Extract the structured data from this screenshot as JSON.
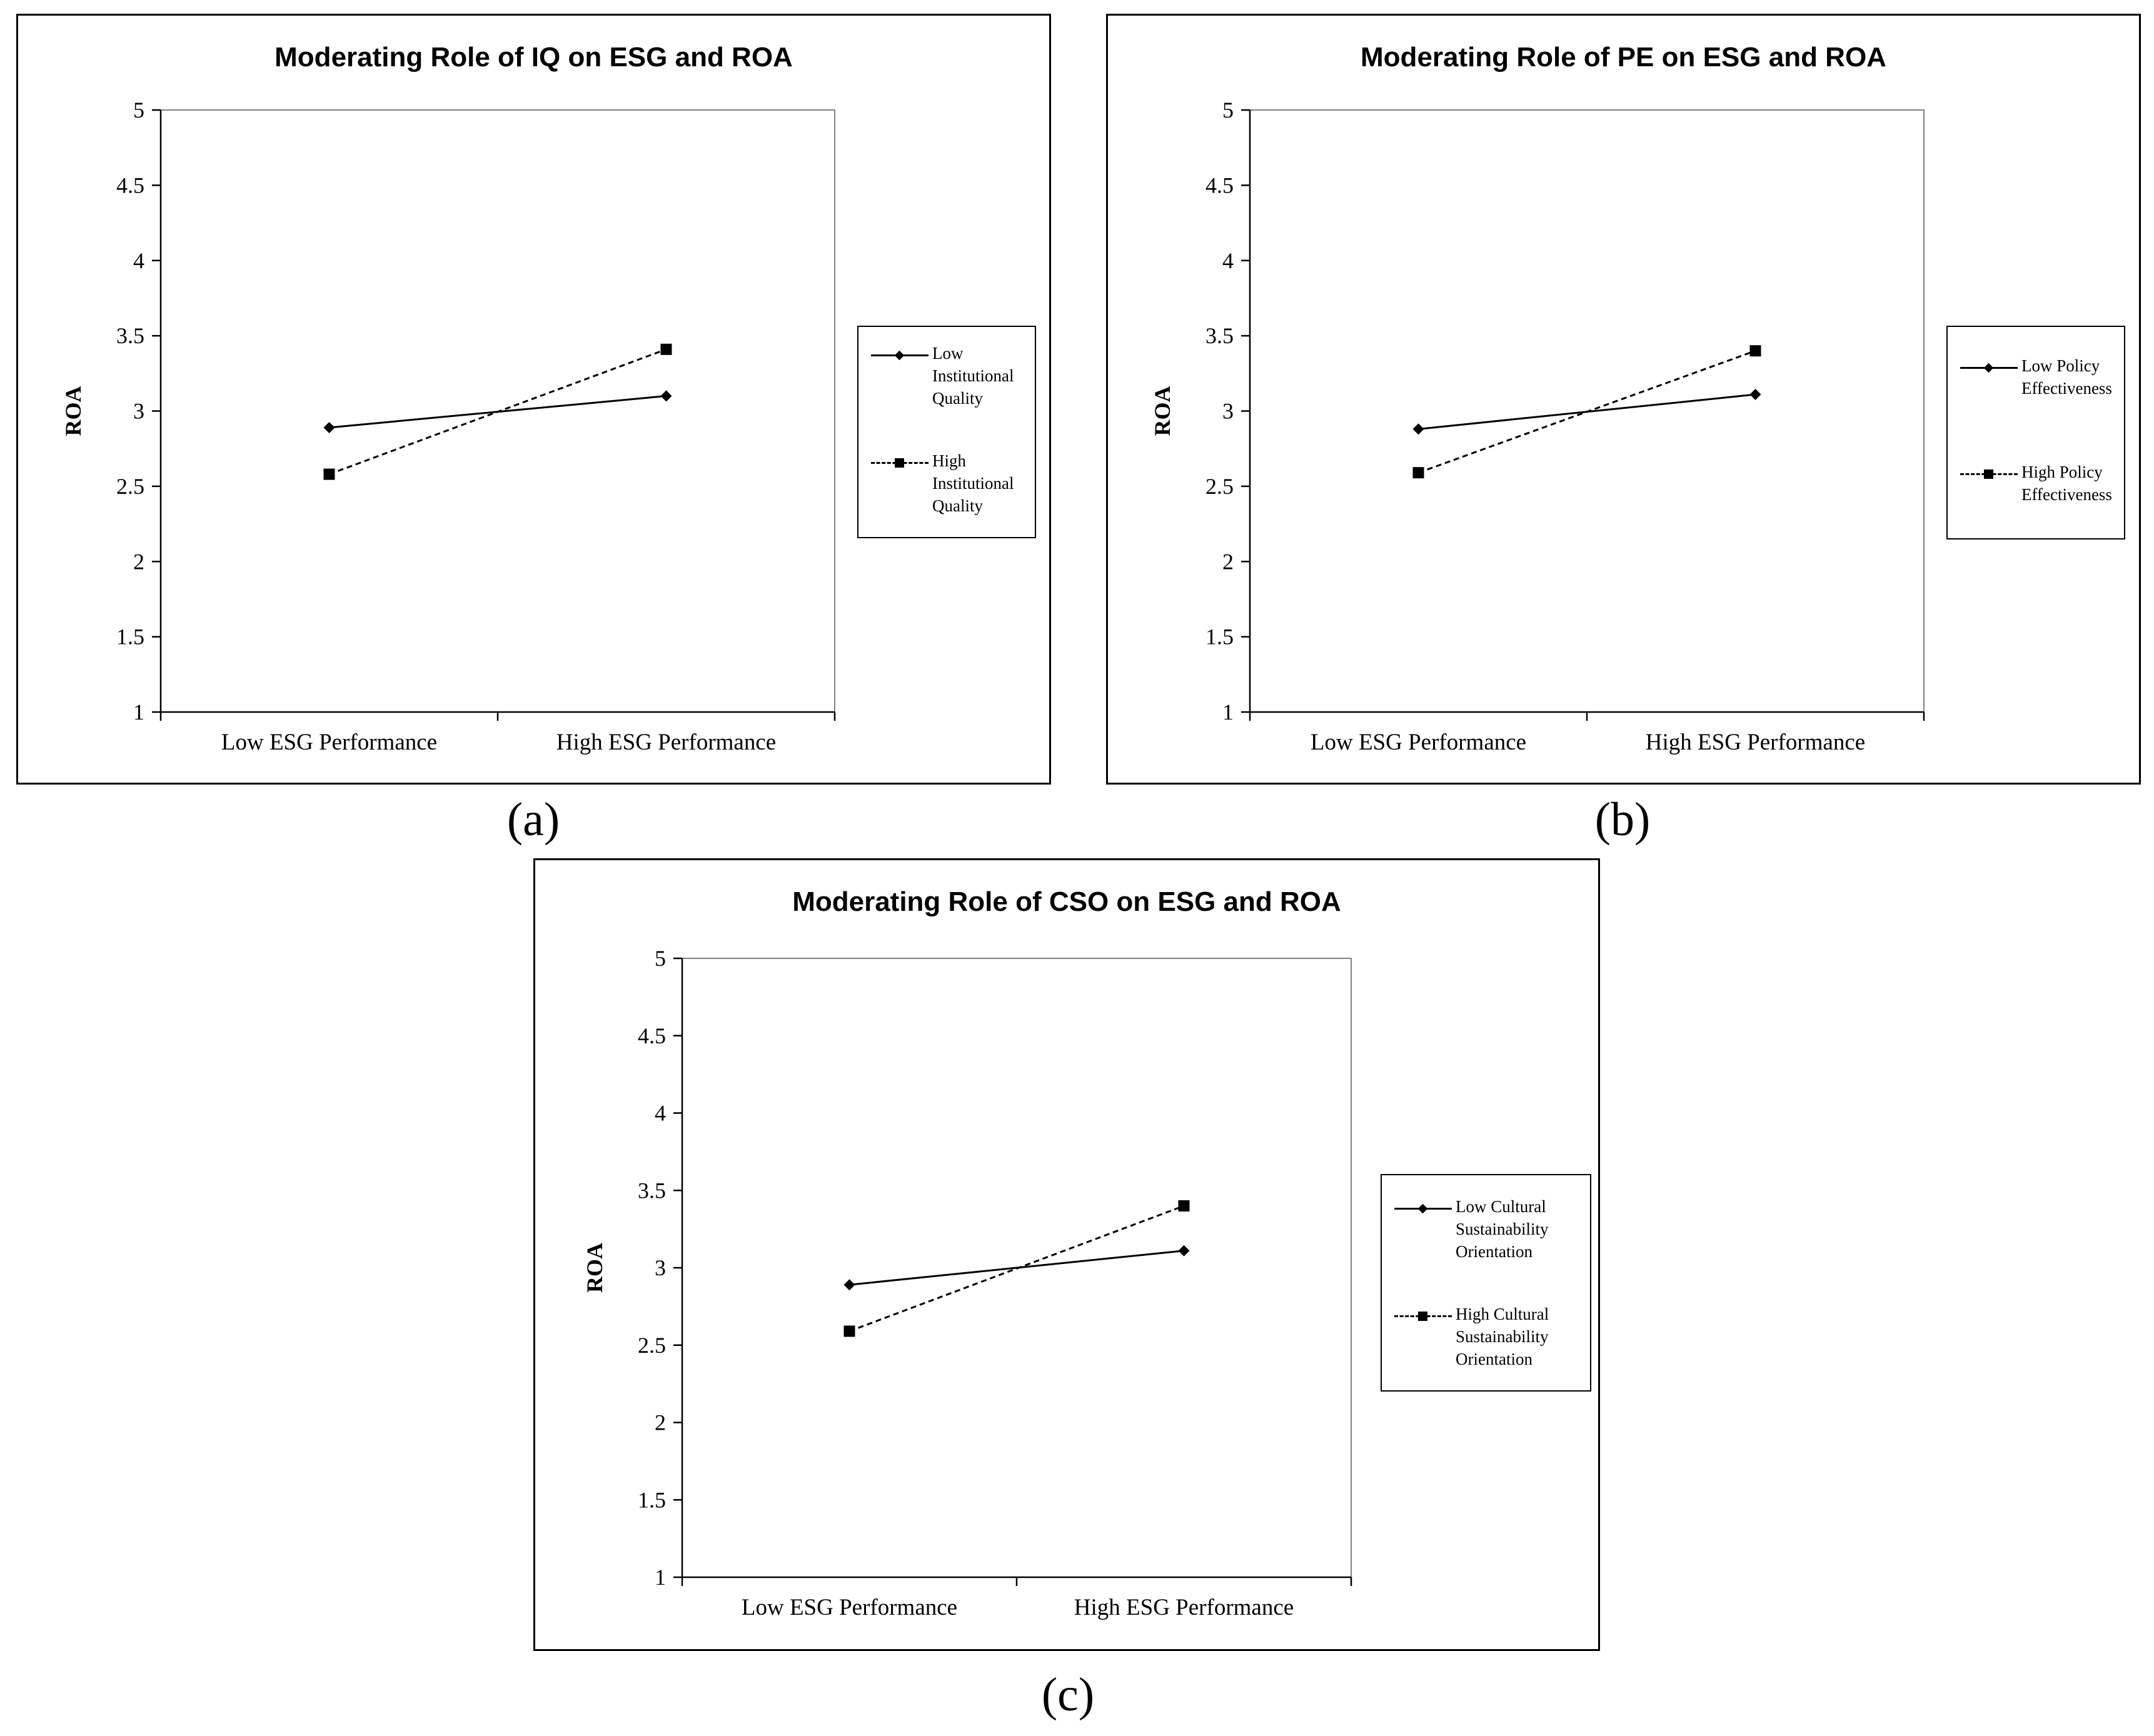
{
  "chart_data": [
    {
      "type": "line",
      "title": "Moderating Role of IQ on ESG and ROA",
      "xlabel": "",
      "ylabel": "ROA",
      "ylim": [
        1,
        5
      ],
      "yticks": [
        "1",
        "1.5",
        "2",
        "2.5",
        "3",
        "3.5",
        "4",
        "4.5",
        "5"
      ],
      "categories": [
        "Low ESG Performance",
        "High ESG Performance"
      ],
      "series": [
        {
          "name": "Low\nInstitutional\nQuality",
          "values": [
            2.89,
            3.1
          ],
          "marker": "diamond",
          "style": "solid"
        },
        {
          "name": "High\nInstitutional\nQuality",
          "values": [
            2.58,
            3.41
          ],
          "marker": "square",
          "style": "dashed"
        }
      ],
      "legend": "right",
      "grid": false,
      "panel_label": "(a)"
    },
    {
      "type": "line",
      "title": "Moderating Role of PE on ESG and ROA",
      "xlabel": "",
      "ylabel": "ROA",
      "ylim": [
        1,
        5
      ],
      "yticks": [
        "1",
        "1.5",
        "2",
        "2.5",
        "3",
        "3.5",
        "4",
        "4.5",
        "5"
      ],
      "categories": [
        "Low ESG Performance",
        "High ESG Performance"
      ],
      "series": [
        {
          "name": "Low Policy\nEffectiveness",
          "values": [
            2.88,
            3.11
          ],
          "marker": "diamond",
          "style": "solid"
        },
        {
          "name": "High Policy\nEffectiveness",
          "values": [
            2.59,
            3.4
          ],
          "marker": "square",
          "style": "dashed"
        }
      ],
      "legend": "right",
      "grid": false,
      "panel_label": "(b)"
    },
    {
      "type": "line",
      "title": "Moderating Role of CSO on ESG and ROA",
      "xlabel": "",
      "ylabel": "ROA",
      "ylim": [
        1,
        5
      ],
      "yticks": [
        "1",
        "1.5",
        "2",
        "2.5",
        "3",
        "3.5",
        "4",
        "4.5",
        "5"
      ],
      "categories": [
        "Low ESG Performance",
        "High ESG Performance"
      ],
      "series": [
        {
          "name": "Low Cultural\nSustainability\nOrientation",
          "values": [
            2.89,
            3.11
          ],
          "marker": "diamond",
          "style": "solid"
        },
        {
          "name": "High Cultural\nSustainability\nOrientation",
          "values": [
            2.59,
            3.4
          ],
          "marker": "square",
          "style": "dashed"
        }
      ],
      "legend": "right",
      "grid": false,
      "panel_label": "(c)"
    }
  ]
}
